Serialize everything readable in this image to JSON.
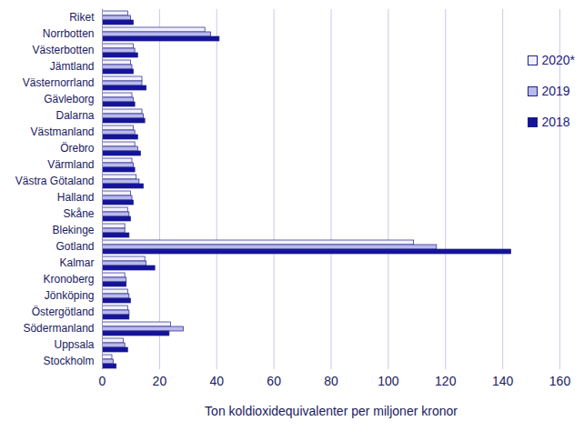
{
  "chart_data": {
    "type": "bar",
    "orientation": "horizontal",
    "xlabel": "Ton koldioxidequivalenter per miljoner kronor",
    "categories": [
      "Riket",
      "Norrbotten",
      "Västerbotten",
      "Jämtland",
      "Västernorrland",
      "Gävleborg",
      "Dalarna",
      "Västmanland",
      "Örebro",
      "Värmland",
      "Västra Götaland",
      "Halland",
      "Skåne",
      "Blekinge",
      "Gotland",
      "Kalmar",
      "Kronoberg",
      "Jönköping",
      "Östergötland",
      "Södermanland",
      "Uppsala",
      "Stockholm"
    ],
    "series": [
      {
        "name": "2020*",
        "color": "#f0f0fa",
        "values": [
          9,
          36,
          11,
          10,
          14,
          10.5,
          14,
          11,
          11.5,
          10.5,
          12,
          10,
          9,
          8,
          109,
          15,
          8,
          9,
          9,
          24,
          7.5,
          3.5
        ]
      },
      {
        "name": "2019",
        "color": "#b9b9ec",
        "values": [
          10,
          38,
          11.5,
          10.5,
          14,
          11,
          14.5,
          11.5,
          12.5,
          11,
          13,
          10.5,
          9.5,
          8,
          117,
          15.5,
          8.5,
          9.5,
          9.5,
          28.5,
          8,
          4
        ]
      },
      {
        "name": "2018",
        "color": "#14149a",
        "values": [
          11,
          41,
          12.5,
          11,
          15.5,
          11.5,
          15,
          12.5,
          13.5,
          11.5,
          14.5,
          11,
          10,
          9.5,
          143,
          18.5,
          8.5,
          10,
          9.5,
          23.5,
          9,
          5
        ]
      }
    ],
    "xlim": [
      0,
      160
    ],
    "xticks": [
      0,
      20,
      40,
      60,
      80,
      100,
      120,
      140,
      160
    ],
    "grid": true,
    "legend": "right"
  }
}
